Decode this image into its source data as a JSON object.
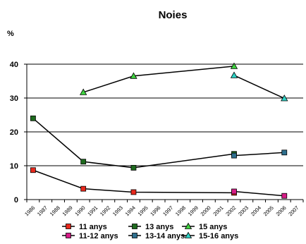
{
  "chart_data": {
    "type": "line",
    "title": "Noies",
    "ylabel": "%",
    "xlabel": "",
    "ylim": [
      0,
      40
    ],
    "yticks": [
      0,
      10,
      20,
      30,
      40
    ],
    "x": [
      "1986",
      "1987",
      "1988",
      "1989",
      "1990",
      "1991",
      "1992",
      "1993",
      "1994",
      "1995",
      "1996",
      "1997",
      "1998",
      "1999",
      "2000",
      "2001",
      "2002",
      "2003",
      "2004",
      "2005",
      "2006",
      "2007"
    ],
    "grid": true,
    "legend_position": "bottom",
    "series": [
      {
        "name": "11 anys",
        "x": [
          "1986",
          "1990",
          "1994",
          "2002"
        ],
        "values": [
          8.7,
          3.2,
          2.2,
          2.0
        ],
        "line_color": "#000000",
        "marker": "square",
        "marker_color": "#e8281c"
      },
      {
        "name": "13 anys",
        "x": [
          "1986",
          "1990",
          "1994",
          "2002"
        ],
        "values": [
          24.0,
          11.2,
          9.4,
          13.5
        ],
        "line_color": "#000000",
        "marker": "square",
        "marker_color": "#1f6b1f"
      },
      {
        "name": "15 anys",
        "x": [
          "1990",
          "1994",
          "2002"
        ],
        "values": [
          31.7,
          36.5,
          39.4
        ],
        "line_color": "#000000",
        "marker": "triangle",
        "marker_color": "#3fd13f"
      },
      {
        "name": "11-12 anys",
        "x": [
          "2002",
          "2006"
        ],
        "values": [
          2.4,
          1.1
        ],
        "line_color": "#000000",
        "marker": "square",
        "marker_color": "#d61c87"
      },
      {
        "name": "13-14 anys",
        "x": [
          "2002",
          "2006"
        ],
        "values": [
          13.0,
          13.9
        ],
        "line_color": "#000000",
        "marker": "square",
        "marker_color": "#2e6f8e"
      },
      {
        "name": "15-16 anys",
        "x": [
          "2002",
          "2006"
        ],
        "values": [
          36.7,
          29.9
        ],
        "line_color": "#000000",
        "marker": "triangle",
        "marker_color": "#2ed1c4"
      }
    ]
  }
}
